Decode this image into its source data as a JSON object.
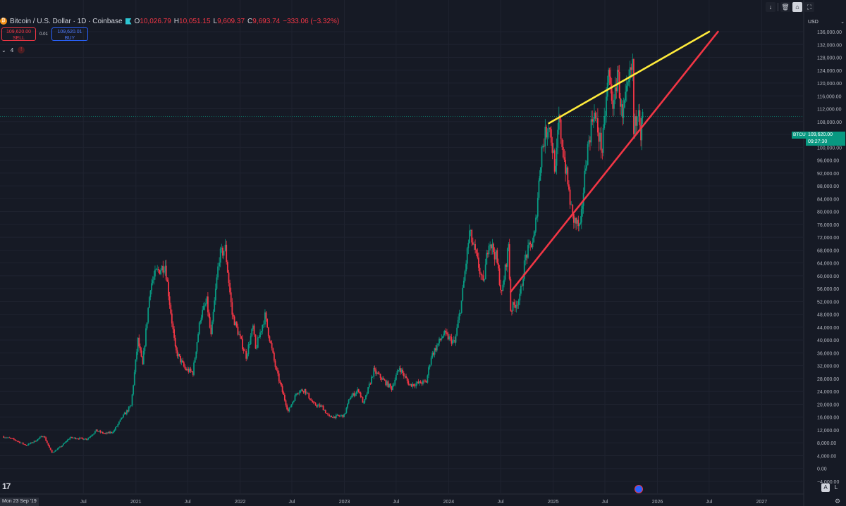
{
  "header": {
    "symbol_title": "Bitcoin / U.S. Dollar · 1D · Coinbase",
    "ohlc": [
      {
        "label": "O",
        "value": "10,026.79"
      },
      {
        "label": "H",
        "value": "10,051.15"
      },
      {
        "label": "L",
        "value": "9,609.37"
      },
      {
        "label": "C",
        "value": "9,693.74"
      }
    ],
    "change": "−333.06 (−3.32%)",
    "colors": {
      "down": "#f23645",
      "up": "#089981",
      "background": "#161a25"
    }
  },
  "trade": {
    "sell_price": "109,620.00",
    "sell_label": "SELL",
    "spread": "0.01",
    "buy_price": "109,620.01",
    "buy_label": "BUY"
  },
  "indicators": {
    "count": "4"
  },
  "toolbar": {
    "icons": [
      "arrow-down-icon",
      "trash-icon",
      "lock-icon",
      "fullscreen-icon"
    ]
  },
  "price_scale": {
    "currency": "USD",
    "mode_auto": "A",
    "mode_log": "L"
  },
  "price_tag": {
    "symbol": "BTCUSD",
    "price": "109,620.00",
    "countdown": "09:27:30"
  },
  "time_axis": {
    "crosshair_date": "Mon 23 Sep '19"
  },
  "chart_data": {
    "type": "line",
    "title": "Bitcoin / U.S. Dollar · 1D · Coinbase",
    "ylim": [
      -4000,
      136000
    ],
    "grid": true,
    "y_ticks": [
      "136,000.00",
      "132,000.00",
      "128,000.00",
      "124,000.00",
      "120,000.00",
      "116,000.00",
      "112,000.00",
      "108,000.00",
      "104,000.00",
      "100,000.00",
      "96,000.00",
      "92,000.00",
      "88,000.00",
      "84,000.00",
      "80,000.00",
      "76,000.00",
      "72,000.00",
      "68,000.00",
      "64,000.00",
      "60,000.00",
      "56,000.00",
      "52,000.00",
      "48,000.00",
      "44,000.00",
      "40,000.00",
      "36,000.00",
      "32,000.00",
      "28,000.00",
      "24,000.00",
      "20,000.00",
      "16,000.00",
      "12,000.00",
      "8,000.00",
      "4,000.00",
      "0.00",
      "−4,000.00"
    ],
    "x_ticks": [
      {
        "label": "Jul",
        "date": "2020-07-01"
      },
      {
        "label": "2021",
        "date": "2021-01-01"
      },
      {
        "label": "Jul",
        "date": "2021-07-01"
      },
      {
        "label": "2022",
        "date": "2022-01-01"
      },
      {
        "label": "Jul",
        "date": "2022-07-01"
      },
      {
        "label": "2023",
        "date": "2023-01-01"
      },
      {
        "label": "Jul",
        "date": "2023-07-01"
      },
      {
        "label": "2024",
        "date": "2024-01-01"
      },
      {
        "label": "Jul",
        "date": "2024-07-01"
      },
      {
        "label": "2025",
        "date": "2025-01-01"
      },
      {
        "label": "Jul",
        "date": "2025-07-01"
      },
      {
        "label": "2026",
        "date": "2026-01-01"
      },
      {
        "label": "Jul",
        "date": "2026-07-01"
      },
      {
        "label": "2027",
        "date": "2027-01-01"
      }
    ],
    "series": [
      {
        "values": [
          [
            "2019-09-23",
            10000
          ],
          [
            "2019-11-01",
            9000
          ],
          [
            "2019-12-15",
            7200
          ],
          [
            "2020-01-15",
            8600
          ],
          [
            "2020-02-13",
            10300
          ],
          [
            "2020-03-13",
            4900
          ],
          [
            "2020-04-15",
            6900
          ],
          [
            "2020-05-15",
            9600
          ],
          [
            "2020-06-15",
            9400
          ],
          [
            "2020-07-15",
            9200
          ],
          [
            "2020-08-15",
            11800
          ],
          [
            "2020-09-15",
            10800
          ],
          [
            "2020-10-15",
            11500
          ],
          [
            "2020-11-15",
            16000
          ],
          [
            "2020-12-15",
            19500
          ],
          [
            "2021-01-08",
            40000
          ],
          [
            "2021-01-25",
            32000
          ],
          [
            "2021-02-21",
            57000
          ],
          [
            "2021-03-13",
            61000
          ],
          [
            "2021-04-14",
            63500
          ],
          [
            "2021-05-19",
            37000
          ],
          [
            "2021-06-22",
            31000
          ],
          [
            "2021-07-20",
            29800
          ],
          [
            "2021-08-15",
            47000
          ],
          [
            "2021-09-07",
            52000
          ],
          [
            "2021-09-21",
            41000
          ],
          [
            "2021-10-20",
            66000
          ],
          [
            "2021-11-10",
            68500
          ],
          [
            "2021-12-04",
            48000
          ],
          [
            "2022-01-22",
            35000
          ],
          [
            "2022-02-15",
            44000
          ],
          [
            "2022-02-24",
            37000
          ],
          [
            "2022-03-29",
            47500
          ],
          [
            "2022-05-09",
            30000
          ],
          [
            "2022-06-18",
            17800
          ],
          [
            "2022-07-20",
            24000
          ],
          [
            "2022-08-15",
            24500
          ],
          [
            "2022-09-15",
            20000
          ],
          [
            "2022-10-15",
            19200
          ],
          [
            "2022-11-09",
            16000
          ],
          [
            "2022-12-31",
            16500
          ],
          [
            "2023-01-20",
            22000
          ],
          [
            "2023-02-20",
            24500
          ],
          [
            "2023-03-10",
            20000
          ],
          [
            "2023-04-14",
            30500
          ],
          [
            "2023-06-15",
            25000
          ],
          [
            "2023-07-13",
            31500
          ],
          [
            "2023-08-17",
            26000
          ],
          [
            "2023-10-15",
            27000
          ],
          [
            "2023-11-01",
            35000
          ],
          [
            "2023-12-15",
            42000
          ],
          [
            "2024-01-23",
            39000
          ],
          [
            "2024-02-15",
            52000
          ],
          [
            "2024-03-14",
            73500
          ],
          [
            "2024-04-15",
            63000
          ],
          [
            "2024-05-01",
            57000
          ],
          [
            "2024-05-21",
            71500
          ],
          [
            "2024-06-15",
            66000
          ],
          [
            "2024-07-05",
            54000
          ],
          [
            "2024-07-29",
            70000
          ],
          [
            "2024-08-05",
            49500
          ],
          [
            "2024-09-06",
            53000
          ],
          [
            "2024-09-27",
            66000
          ],
          [
            "2024-10-29",
            72500
          ],
          [
            "2024-11-12",
            89000
          ],
          [
            "2024-11-22",
            99500
          ],
          [
            "2024-12-17",
            108000
          ],
          [
            "2025-01-10",
            92000
          ],
          [
            "2025-01-21",
            109000
          ],
          [
            "2025-02-25",
            86000
          ],
          [
            "2025-03-10",
            78000
          ],
          [
            "2025-04-07",
            74500
          ],
          [
            "2025-04-25",
            95000
          ],
          [
            "2025-05-22",
            111500
          ],
          [
            "2025-06-22",
            99000
          ],
          [
            "2025-07-14",
            123000
          ],
          [
            "2025-08-02",
            112000
          ],
          [
            "2025-08-14",
            124500
          ],
          [
            "2025-09-01",
            108000
          ],
          [
            "2025-09-15",
            116000
          ],
          [
            "2025-10-06",
            126000
          ],
          [
            "2025-10-10",
            104000
          ],
          [
            "2025-10-27",
            115000
          ],
          [
            "2025-11-04",
            104000
          ],
          [
            "2025-11-10",
            109620
          ]
        ]
      }
    ],
    "trendlines": [
      {
        "color": "#ffeb3b",
        "from": [
          "2024-12-17",
          107500
        ],
        "to": [
          "2026-07-01",
          136000
        ]
      },
      {
        "color": "#f23645",
        "from": [
          "2024-08-05",
          55000
        ],
        "to": [
          "2026-08-01",
          136000
        ]
      }
    ],
    "last_price": 109620
  }
}
